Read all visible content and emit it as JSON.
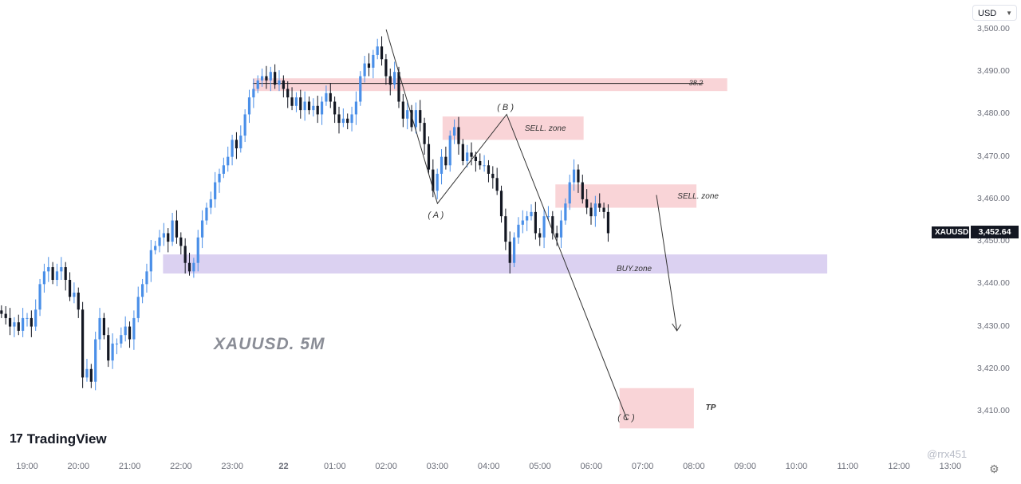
{
  "chart_data": {
    "type": "candlestick",
    "symbol": "XAUUSD",
    "title": "XAUUSD. 5M",
    "currency": "USD",
    "last_price_label": "3,452.64",
    "last_price": 3452.64,
    "ylim": [
      3403,
      3503
    ],
    "y_ticks": [
      3410,
      3420,
      3430,
      3440,
      3450,
      3460,
      3470,
      3480,
      3490,
      3500
    ],
    "y_tick_labels": [
      "3,410.00",
      "3,420.00",
      "3,430.00",
      "3,440.00",
      "3,450.00",
      "3,460.00",
      "3,470.00",
      "3,480.00",
      "3,490.00",
      "3,500.00"
    ],
    "x_ticks": [
      "19:00",
      "20:00",
      "21:00",
      "22:00",
      "23:00",
      "22",
      "01:00",
      "02:00",
      "03:00",
      "04:00",
      "05:00",
      "06:00",
      "07:00",
      "08:00",
      "09:00",
      "10:00",
      "11:00",
      "12:00",
      "13:00"
    ],
    "x_tick_hours": [
      19,
      20,
      21,
      22,
      23,
      24,
      25,
      26,
      27,
      28,
      29,
      30,
      31,
      32,
      33,
      34,
      35,
      36,
      37
    ],
    "x_start_hour": 18.5,
    "candle_step_hours": 0.0833,
    "colors": {
      "up": "#4a8fe8",
      "down": "#131722",
      "sell_zone": "#f8cfd3",
      "buy_zone": "#d7ccef",
      "tp_zone": "#f8cfd3",
      "drawing": "#333333"
    },
    "closes": [
      3433,
      3432,
      3430,
      3431,
      3429,
      3432,
      3432,
      3430,
      3434,
      3440,
      3443,
      3444,
      3441,
      3443,
      3444,
      3441,
      3437,
      3438,
      3434,
      3418,
      3420,
      3417,
      3427,
      3432,
      3428,
      3422,
      3426,
      3426,
      3428,
      3430,
      3427,
      3432,
      3437,
      3440,
      3443,
      3448,
      3449,
      3451,
      3452,
      3450,
      3455,
      3451,
      3449,
      3445,
      3443,
      3445,
      3451,
      3455,
      3458,
      3460,
      3464,
      3466,
      3468,
      3470,
      3474,
      3472,
      3475,
      3480,
      3484,
      3486,
      3488,
      3489,
      3488,
      3490,
      3487,
      3488,
      3486,
      3484,
      3482,
      3484,
      3481,
      3483,
      3481,
      3482,
      3480,
      3483,
      3485,
      3483,
      3480,
      3478,
      3479,
      3478,
      3480,
      3483,
      3489,
      3492,
      3491,
      3494,
      3496,
      3493,
      3489,
      3487,
      3490,
      3483,
      3479,
      3481,
      3477,
      3481,
      3478,
      3473,
      3467,
      3462,
      3466,
      3470,
      3468,
      3475,
      3477,
      3473,
      3469,
      3471,
      3470,
      3469,
      3468,
      3468,
      3466,
      3465,
      3462,
      3456,
      3450,
      3445,
      3451,
      3454,
      3455,
      3456,
      3457,
      3452,
      3451,
      3456,
      3456,
      3452,
      3451,
      3455,
      3459,
      3464,
      3467,
      3464,
      3460,
      3458,
      3456,
      3459,
      3458,
      3457,
      3452
    ],
    "series": [
      {
        "name": "XAUUSD 5M",
        "values": "closes"
      }
    ],
    "zones": [
      {
        "label": "38.2",
        "price_top": 3488.5,
        "price_bottom": 3485.5,
        "from_hour": 23.4,
        "to_hour": 32.65
      },
      {
        "label": "SELL. zone",
        "price_top": 3479.5,
        "price_bottom": 3474,
        "from_hour": 27.1,
        "to_hour": 29.85
      },
      {
        "label": "SELL. zone",
        "price_top": 3463.5,
        "price_bottom": 3458,
        "from_hour": 29.3,
        "to_hour": 32.05
      },
      {
        "label": "BUY.zone",
        "price_top": 3447,
        "price_bottom": 3442.5,
        "from_hour": 21.65,
        "to_hour": 34.6
      },
      {
        "label": "TP",
        "price_top": 3415.5,
        "price_bottom": 3406,
        "from_hour": 30.55,
        "to_hour": 32.0
      }
    ],
    "wave_points": [
      {
        "label": "( A )",
        "hour": 27.0,
        "price": 3459,
        "label_price": 3456.3
      },
      {
        "label": "( B )",
        "hour": 28.35,
        "price": 3480,
        "label_price": 3481.5
      },
      {
        "label": "( C )",
        "hour": 30.7,
        "price": 3408,
        "label_price": 3408.5
      }
    ],
    "wave_start": {
      "hour": 26.0,
      "price": 3500
    },
    "fib_level_price": 3487.3,
    "projection_arrow": {
      "from_hour": 31.27,
      "from_price": 3461,
      "to_hour": 31.67,
      "to_price": 3429
    }
  },
  "branding": {
    "logo_mark": "17",
    "logo_text": "TradingView",
    "watermark": "@rrx451"
  },
  "icons": {
    "settings": "gear-icon",
    "caret": "chevron-down-icon"
  }
}
